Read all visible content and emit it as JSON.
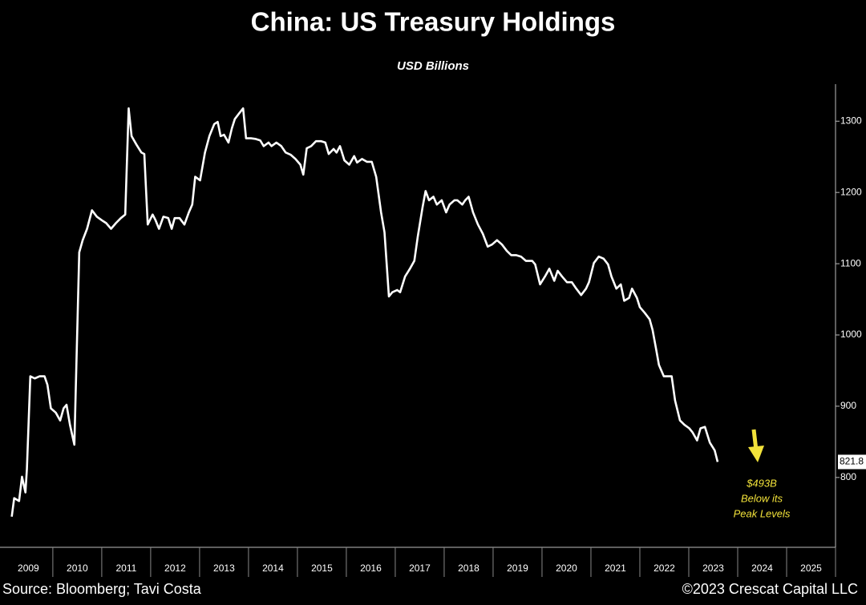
{
  "chart_data": {
    "type": "line",
    "title": "China: US Treasury Holdings",
    "subtitle": "USD Billions",
    "source": "Source: Bloomberg; Tavi Costa",
    "copyright": "©2023 Crescat Capital LLC",
    "annotations": [
      "$493B",
      "Below its",
      "Peak Levels"
    ],
    "annotation_color": "#f2e23a",
    "color": "#ffffff",
    "x": [
      2009.16,
      2009.21,
      2009.31,
      2009.37,
      2009.44,
      2009.47,
      2009.54,
      2009.63,
      2009.73,
      2009.83,
      2009.89,
      2009.96,
      2010.06,
      2010.15,
      2010.22,
      2010.28,
      2010.35,
      2010.44,
      2010.54,
      2010.61,
      2010.7,
      2010.8,
      2010.9,
      2011.0,
      2011.09,
      2011.19,
      2011.29,
      2011.39,
      2011.48,
      2011.55,
      2011.61,
      2011.71,
      2011.81,
      2011.87,
      2011.94,
      2012.04,
      2012.1,
      2012.17,
      2012.26,
      2012.36,
      2012.43,
      2012.49,
      2012.59,
      2012.69,
      2012.78,
      2012.85,
      2012.91,
      2013.01,
      2013.11,
      2013.2,
      2013.3,
      2013.37,
      2013.43,
      2013.5,
      2013.59,
      2013.66,
      2013.72,
      2013.82,
      2013.89,
      2013.95,
      2014.05,
      2014.15,
      2014.24,
      2014.31,
      2014.41,
      2014.47,
      2014.57,
      2014.67,
      2014.76,
      2014.86,
      2014.96,
      2015.06,
      2015.12,
      2015.19,
      2015.28,
      2015.38,
      2015.48,
      2015.57,
      2015.64,
      2015.74,
      2015.8,
      2015.87,
      2015.96,
      2016.06,
      2016.16,
      2016.22,
      2016.32,
      2016.42,
      2016.52,
      2016.61,
      2016.71,
      2016.78,
      2016.87,
      2016.94,
      2017.04,
      2017.1,
      2017.2,
      2017.3,
      2017.39,
      2017.46,
      2017.56,
      2017.62,
      2017.69,
      2017.78,
      2017.85,
      2017.95,
      2018.04,
      2018.11,
      2018.21,
      2018.27,
      2018.37,
      2018.43,
      2018.5,
      2018.59,
      2018.69,
      2018.79,
      2018.89,
      2018.98,
      2019.08,
      2019.18,
      2019.28,
      2019.37,
      2019.47,
      2019.57,
      2019.67,
      2019.8,
      2019.86,
      2019.96,
      2020.06,
      2020.15,
      2020.25,
      2020.32,
      2020.41,
      2020.51,
      2020.61,
      2020.7,
      2020.8,
      2020.9,
      2020.96,
      2021.06,
      2021.16,
      2021.26,
      2021.35,
      2021.42,
      2021.52,
      2021.61,
      2021.68,
      2021.78,
      2021.84,
      2021.94,
      2022.0,
      2022.1,
      2022.2,
      2022.26,
      2022.33,
      2022.39,
      2022.49,
      2022.59,
      2022.65,
      2022.72,
      2022.82,
      2022.91,
      2023.01,
      2023.08,
      2023.17,
      2023.24,
      2023.33,
      2023.43,
      2023.53,
      2023.59
    ],
    "values": [
      745,
      771,
      767,
      801,
      779,
      812,
      942,
      939,
      942,
      942,
      930,
      897,
      891,
      880,
      897,
      902,
      874,
      846,
      1116,
      1133,
      1149,
      1175,
      1166,
      1161,
      1157,
      1149,
      1157,
      1164,
      1169,
      1318,
      1279,
      1267,
      1256,
      1254,
      1155,
      1169,
      1161,
      1149,
      1166,
      1164,
      1149,
      1164,
      1164,
      1155,
      1172,
      1183,
      1222,
      1217,
      1256,
      1279,
      1296,
      1299,
      1279,
      1281,
      1270,
      1290,
      1303,
      1312,
      1318,
      1276,
      1276,
      1275,
      1273,
      1265,
      1270,
      1265,
      1270,
      1265,
      1256,
      1253,
      1247,
      1239,
      1225,
      1262,
      1265,
      1272,
      1272,
      1270,
      1254,
      1261,
      1256,
      1265,
      1245,
      1239,
      1251,
      1242,
      1247,
      1243,
      1243,
      1222,
      1172,
      1144,
      1054,
      1060,
      1063,
      1060,
      1082,
      1093,
      1104,
      1138,
      1180,
      1202,
      1189,
      1194,
      1183,
      1189,
      1172,
      1183,
      1189,
      1189,
      1183,
      1189,
      1194,
      1172,
      1155,
      1142,
      1124,
      1127,
      1133,
      1127,
      1118,
      1112,
      1112,
      1110,
      1104,
      1104,
      1099,
      1071,
      1082,
      1093,
      1076,
      1090,
      1082,
      1074,
      1074,
      1065,
      1056,
      1065,
      1074,
      1101,
      1110,
      1107,
      1099,
      1082,
      1065,
      1071,
      1048,
      1052,
      1065,
      1052,
      1039,
      1031,
      1022,
      1007,
      981,
      958,
      942,
      942,
      942,
      908,
      880,
      874,
      869,
      863,
      852,
      869,
      871,
      849,
      838,
      821.8
    ],
    "xlim": [
      2008.92,
      2026
    ],
    "xticks": [
      2009,
      2010,
      2011,
      2012,
      2013,
      2014,
      2015,
      2016,
      2017,
      2018,
      2019,
      2020,
      2021,
      2022,
      2023,
      2024,
      2025
    ],
    "ylim": [
      702,
      1352
    ],
    "yticks": [
      800,
      900,
      1000,
      1100,
      1200,
      1300
    ]
  }
}
